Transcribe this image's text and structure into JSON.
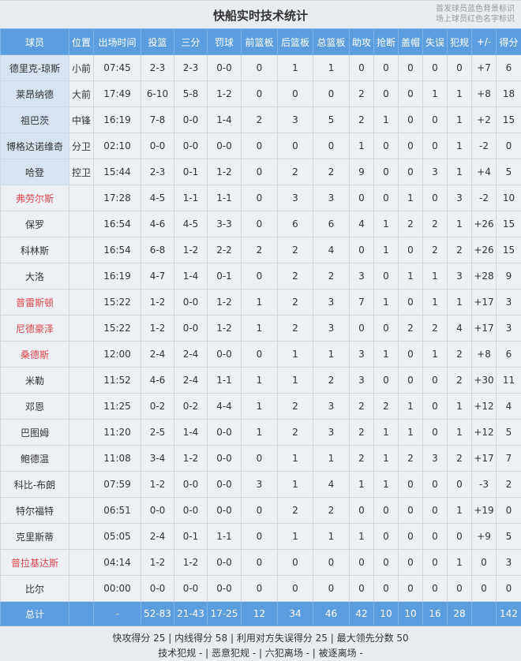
{
  "title": "快船实时技术统计",
  "legend": [
    "首发球员蓝色背景标识",
    "场上球员红色名字标识"
  ],
  "colors": {
    "header": "#5b9ee0",
    "starter_bg": "#d6e3f1",
    "on_court_text": "#e0464e"
  },
  "columns": [
    "球员",
    "位置",
    "出场时间",
    "投篮",
    "三分",
    "罚球",
    "前篮板",
    "后篮板",
    "总篮板",
    "助攻",
    "抢断",
    "盖帽",
    "失误",
    "犯规",
    "+/-",
    "得分"
  ],
  "players": [
    {
      "name": "德里克-琼斯",
      "pos": "小前",
      "starter": true,
      "on_court": false,
      "stats": [
        "07:45",
        "2-3",
        "2-3",
        "0-0",
        "0",
        "1",
        "1",
        "0",
        "0",
        "0",
        "0",
        "0",
        "+7",
        "6"
      ]
    },
    {
      "name": "莱昂纳德",
      "pos": "大前",
      "starter": true,
      "on_court": false,
      "stats": [
        "17:49",
        "6-10",
        "5-8",
        "1-2",
        "0",
        "0",
        "0",
        "2",
        "0",
        "0",
        "1",
        "1",
        "+8",
        "18"
      ]
    },
    {
      "name": "祖巴茨",
      "pos": "中锋",
      "starter": true,
      "on_court": false,
      "stats": [
        "16:19",
        "7-8",
        "0-0",
        "1-4",
        "2",
        "3",
        "5",
        "2",
        "1",
        "0",
        "0",
        "1",
        "+2",
        "15"
      ]
    },
    {
      "name": "博格达诺维奇",
      "pos": "分卫",
      "starter": true,
      "on_court": false,
      "stats": [
        "02:10",
        "0-0",
        "0-0",
        "0-0",
        "0",
        "0",
        "0",
        "1",
        "0",
        "0",
        "0",
        "1",
        "-2",
        "0"
      ]
    },
    {
      "name": "哈登",
      "pos": "控卫",
      "starter": true,
      "on_court": false,
      "stats": [
        "15:44",
        "2-3",
        "0-1",
        "1-2",
        "0",
        "2",
        "2",
        "9",
        "0",
        "0",
        "3",
        "1",
        "+4",
        "5"
      ]
    },
    {
      "name": "弗劳尔斯",
      "pos": "",
      "starter": false,
      "on_court": true,
      "stats": [
        "17:28",
        "4-5",
        "1-1",
        "1-1",
        "0",
        "3",
        "3",
        "0",
        "0",
        "1",
        "0",
        "3",
        "-2",
        "10"
      ]
    },
    {
      "name": "保罗",
      "pos": "",
      "starter": false,
      "on_court": false,
      "stats": [
        "16:54",
        "4-6",
        "4-5",
        "3-3",
        "0",
        "6",
        "6",
        "4",
        "1",
        "2",
        "2",
        "1",
        "+26",
        "15"
      ]
    },
    {
      "name": "科林斯",
      "pos": "",
      "starter": false,
      "on_court": false,
      "stats": [
        "16:54",
        "6-8",
        "1-2",
        "2-2",
        "2",
        "2",
        "4",
        "0",
        "1",
        "0",
        "2",
        "2",
        "+26",
        "15"
      ]
    },
    {
      "name": "大洛",
      "pos": "",
      "starter": false,
      "on_court": false,
      "stats": [
        "16:19",
        "4-7",
        "1-4",
        "0-1",
        "0",
        "2",
        "2",
        "3",
        "0",
        "1",
        "1",
        "3",
        "+28",
        "9"
      ]
    },
    {
      "name": "普雷斯顿",
      "pos": "",
      "starter": false,
      "on_court": true,
      "stats": [
        "15:22",
        "1-2",
        "0-0",
        "1-2",
        "1",
        "2",
        "3",
        "7",
        "1",
        "0",
        "1",
        "1",
        "+17",
        "3"
      ]
    },
    {
      "name": "尼德豪泽",
      "pos": "",
      "starter": false,
      "on_court": true,
      "stats": [
        "15:22",
        "1-2",
        "0-0",
        "1-2",
        "1",
        "2",
        "3",
        "0",
        "0",
        "2",
        "2",
        "4",
        "+17",
        "3"
      ]
    },
    {
      "name": "桑德斯",
      "pos": "",
      "starter": false,
      "on_court": true,
      "stats": [
        "12:00",
        "2-4",
        "2-4",
        "0-0",
        "0",
        "1",
        "1",
        "3",
        "1",
        "0",
        "1",
        "2",
        "+8",
        "6"
      ]
    },
    {
      "name": "米勒",
      "pos": "",
      "starter": false,
      "on_court": false,
      "stats": [
        "11:52",
        "4-6",
        "2-4",
        "1-1",
        "1",
        "1",
        "2",
        "3",
        "0",
        "0",
        "0",
        "2",
        "+30",
        "11"
      ]
    },
    {
      "name": "邓恩",
      "pos": "",
      "starter": false,
      "on_court": false,
      "stats": [
        "11:25",
        "0-2",
        "0-2",
        "4-4",
        "1",
        "2",
        "3",
        "2",
        "2",
        "1",
        "0",
        "1",
        "+12",
        "4"
      ]
    },
    {
      "name": "巴图姆",
      "pos": "",
      "starter": false,
      "on_court": false,
      "stats": [
        "11:20",
        "2-5",
        "1-4",
        "0-0",
        "1",
        "2",
        "3",
        "2",
        "1",
        "1",
        "0",
        "1",
        "+12",
        "5"
      ]
    },
    {
      "name": "鲍德温",
      "pos": "",
      "starter": false,
      "on_court": false,
      "stats": [
        "11:08",
        "3-4",
        "1-2",
        "0-0",
        "0",
        "1",
        "1",
        "2",
        "1",
        "2",
        "3",
        "2",
        "+17",
        "7"
      ]
    },
    {
      "name": "科比-布朗",
      "pos": "",
      "starter": false,
      "on_court": false,
      "stats": [
        "07:59",
        "1-2",
        "0-0",
        "0-0",
        "3",
        "1",
        "4",
        "1",
        "1",
        "0",
        "0",
        "0",
        "-3",
        "2"
      ]
    },
    {
      "name": "特尔福特",
      "pos": "",
      "starter": false,
      "on_court": false,
      "stats": [
        "06:51",
        "0-0",
        "0-0",
        "0-0",
        "0",
        "2",
        "2",
        "0",
        "0",
        "0",
        "0",
        "1",
        "+19",
        "0"
      ]
    },
    {
      "name": "克里斯蒂",
      "pos": "",
      "starter": false,
      "on_court": false,
      "stats": [
        "05:05",
        "2-4",
        "0-1",
        "1-1",
        "0",
        "1",
        "1",
        "1",
        "0",
        "0",
        "0",
        "0",
        "+9",
        "5"
      ]
    },
    {
      "name": "普拉基达斯",
      "pos": "",
      "starter": false,
      "on_court": true,
      "stats": [
        "04:14",
        "1-2",
        "1-2",
        "0-0",
        "0",
        "0",
        "0",
        "0",
        "0",
        "0",
        "0",
        "1",
        "0",
        "3"
      ]
    },
    {
      "name": "比尔",
      "pos": "",
      "starter": false,
      "on_court": false,
      "stats": [
        "00:00",
        "0-0",
        "0-0",
        "0-0",
        "0",
        "0",
        "0",
        "0",
        "0",
        "0",
        "0",
        "0",
        "0",
        "0"
      ]
    }
  ],
  "total": {
    "label": "总计",
    "pos": "",
    "stats": [
      "-",
      "52-83",
      "21-43",
      "17-25",
      "12",
      "34",
      "46",
      "42",
      "10",
      "10",
      "16",
      "28",
      "",
      "142"
    ]
  },
  "footer": {
    "line1": "快攻得分 25 | 内线得分 58 | 利用对方失误得分 25 | 最大领先分数 50",
    "line2": "技术犯规 - | 恶意犯规 - | 六犯离场 - | 被逐离场 -"
  }
}
